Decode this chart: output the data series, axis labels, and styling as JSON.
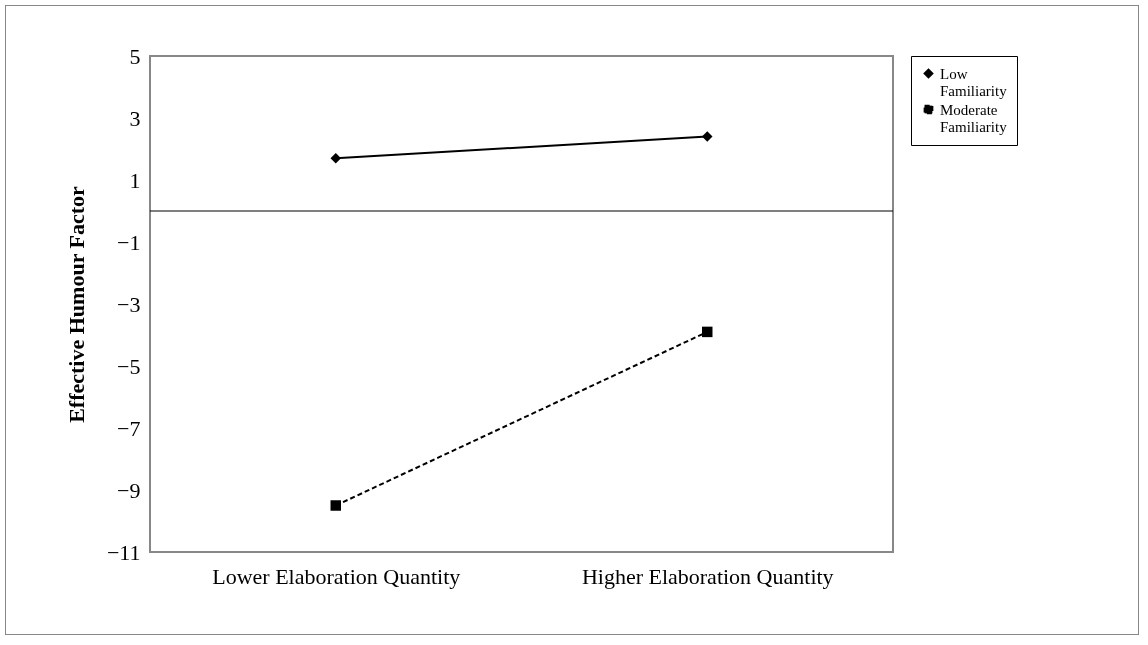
{
  "chart_data": {
    "type": "line",
    "ylabel": "Effective Humour Factor",
    "categories": [
      "Lower Elaboration Quantity",
      "Higher Elaboration Quantity"
    ],
    "series": [
      {
        "name": "Low Familiarity",
        "color": "#000000",
        "marker": "diamond",
        "line_style": "solid",
        "values": [
          1.7,
          2.4
        ]
      },
      {
        "name": "Moderate Familiarity",
        "color": "#000000",
        "marker": "square",
        "line_style": "dashed",
        "values": [
          -9.5,
          -3.9
        ]
      }
    ],
    "ylim": [
      -11,
      5
    ],
    "yticks": [
      -11,
      -9,
      -7,
      -5,
      -3,
      -1,
      1,
      3,
      5
    ],
    "grid": false,
    "legend": "right"
  }
}
